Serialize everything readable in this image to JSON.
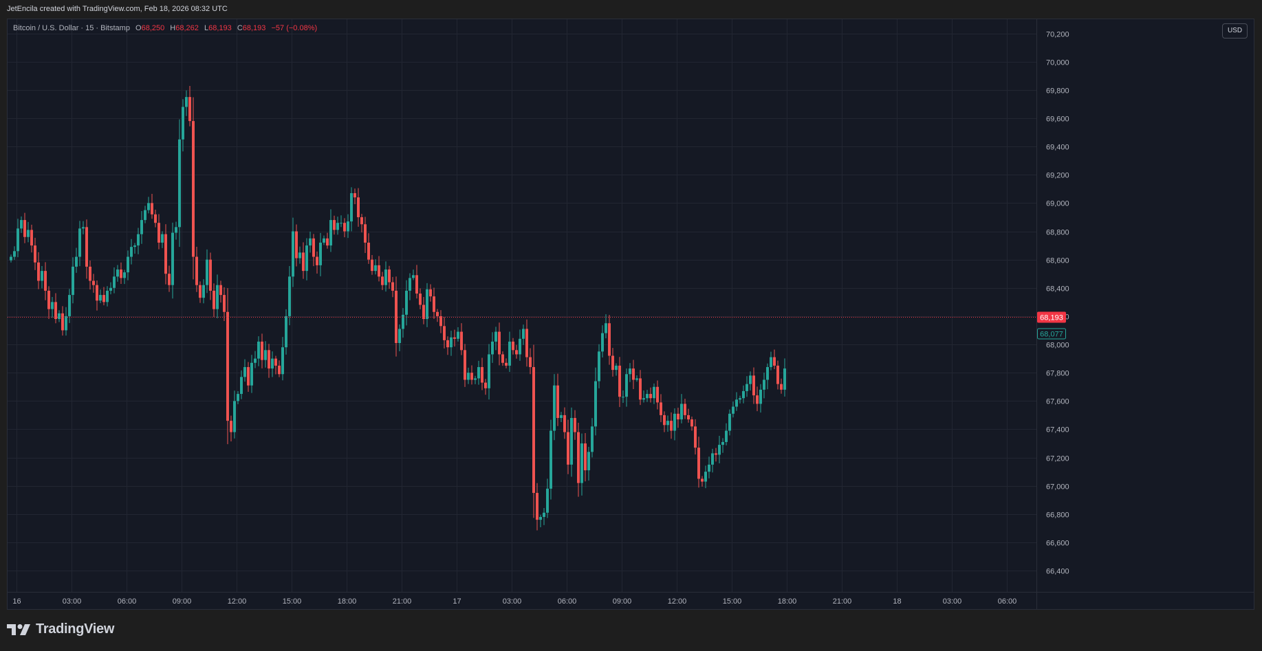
{
  "header": {
    "credit": "JetEncila created with TradingView.com, Feb 18, 2026 08:32 UTC"
  },
  "legend": {
    "symbol": "Bitcoin / U.S. Dollar · 15 · Bitstamp",
    "o_label": "O",
    "o_value": "68,250",
    "h_label": "H",
    "h_value": "68,262",
    "l_label": "L",
    "l_value": "68,193",
    "c_label": "C",
    "c_value": "68,193",
    "change": "−57 (−0.08%)"
  },
  "currency": "USD",
  "brand": {
    "name": "TradingView",
    "icon": "tradingview-logo-icon"
  },
  "colors": {
    "up": "#26a69a",
    "down": "#ef5350",
    "background": "#151924",
    "grid": "#222632",
    "text": "#b2b5be",
    "last_price": "#f23645"
  },
  "chart_data": {
    "type": "candlestick",
    "title": "Bitcoin / U.S. Dollar · 15 · Bitstamp",
    "interval": "15",
    "xlabel": "",
    "ylabel": "",
    "ylim": [
      66250,
      70300
    ],
    "y_ticks": [
      66400,
      66600,
      66800,
      67000,
      67200,
      67400,
      67600,
      67800,
      68000,
      68200,
      68400,
      68600,
      68800,
      69000,
      69200,
      69400,
      69600,
      69800,
      70000,
      70200
    ],
    "y_tick_labels": [
      "66,400",
      "66,600",
      "66,800",
      "67,000",
      "67,200",
      "67,400",
      "67,600",
      "67,800",
      "68,000",
      "68,200",
      "68,400",
      "68,600",
      "68,800",
      "69,000",
      "69,200",
      "69,400",
      "69,600",
      "69,800",
      "70,000",
      "70,200"
    ],
    "x_labels": [
      {
        "label": "16",
        "bar": 2
      },
      {
        "label": "03:00",
        "bar": 18
      },
      {
        "label": "06:00",
        "bar": 34
      },
      {
        "label": "09:00",
        "bar": 50
      },
      {
        "label": "12:00",
        "bar": 66
      },
      {
        "label": "15:00",
        "bar": 82
      },
      {
        "label": "18:00",
        "bar": 98
      },
      {
        "label": "21:00",
        "bar": 114
      },
      {
        "label": "17",
        "bar": 130
      },
      {
        "label": "03:00",
        "bar": 146
      },
      {
        "label": "06:00",
        "bar": 162
      },
      {
        "label": "09:00",
        "bar": 178
      },
      {
        "label": "12:00",
        "bar": 194
      },
      {
        "label": "15:00",
        "bar": 210
      },
      {
        "label": "18:00",
        "bar": 226
      },
      {
        "label": "21:00",
        "bar": 242
      },
      {
        "label": "18",
        "bar": 258
      },
      {
        "label": "03:00",
        "bar": 274
      },
      {
        "label": "06:00",
        "bar": 290
      }
    ],
    "last_price": 68193,
    "last_price_label": "68,193",
    "secondary_price": 68077,
    "secondary_price_label": "68,077",
    "grid": true,
    "closes": [
      68620,
      68660,
      68820,
      68880,
      68760,
      68810,
      68700,
      68580,
      68450,
      68520,
      68380,
      68250,
      68300,
      68180,
      68220,
      68100,
      68200,
      68350,
      68550,
      68620,
      68820,
      68830,
      68550,
      68450,
      68420,
      68310,
      68350,
      68300,
      68380,
      68400,
      68480,
      68530,
      68470,
      68510,
      68620,
      68690,
      68700,
      68780,
      68880,
      68950,
      69000,
      68920,
      68860,
      68720,
      68780,
      68500,
      68420,
      68790,
      68830,
      69450,
      69680,
      69750,
      69580,
      68620,
      68420,
      68330,
      68420,
      68600,
      68380,
      68250,
      68420,
      68350,
      68230,
      67460,
      67380,
      67600,
      67650,
      67770,
      67840,
      67710,
      67870,
      67900,
      68020,
      67890,
      67960,
      67830,
      67900,
      67850,
      67790,
      67980,
      68200,
      68480,
      68800,
      68610,
      68650,
      68520,
      68700,
      68750,
      68620,
      68560,
      68720,
      68750,
      68700,
      68880,
      68810,
      68860,
      68860,
      68800,
      68870,
      69070,
      69040,
      68900,
      68850,
      68720,
      68600,
      68520,
      68560,
      68480,
      68420,
      68530,
      68440,
      68380,
      68010,
      68110,
      68210,
      68380,
      68470,
      68490,
      68360,
      68280,
      68180,
      68390,
      68340,
      68230,
      68200,
      68130,
      68030,
      67980,
      68050,
      68040,
      68090,
      67960,
      67750,
      67800,
      67750,
      67760,
      67840,
      67730,
      67690,
      67930,
      68020,
      68090,
      67930,
      67870,
      67850,
      68020,
      67960,
      67930,
      68040,
      68110,
      67910,
      67840,
      66950,
      66760,
      66780,
      66810,
      66980,
      67390,
      67710,
      67480,
      67500,
      67380,
      67150,
      67480,
      67380,
      67020,
      67300,
      67110,
      67240,
      67420,
      67740,
      67950,
      68080,
      68150,
      67920,
      67820,
      67850,
      67630,
      67630,
      67790,
      67830,
      67750,
      67760,
      67610,
      67620,
      67650,
      67620,
      67700,
      67590,
      67500,
      67430,
      67460,
      67390,
      67510,
      67470,
      67580,
      67500,
      67470,
      67420,
      67270,
      67050,
      67030,
      67100,
      67150,
      67230,
      67220,
      67290,
      67310,
      67390,
      67510,
      67560,
      67610,
      67620,
      67670,
      67720,
      67780,
      67640,
      67580,
      67680,
      67750,
      67840,
      67910,
      67850,
      67720,
      67680,
      67830
    ]
  }
}
